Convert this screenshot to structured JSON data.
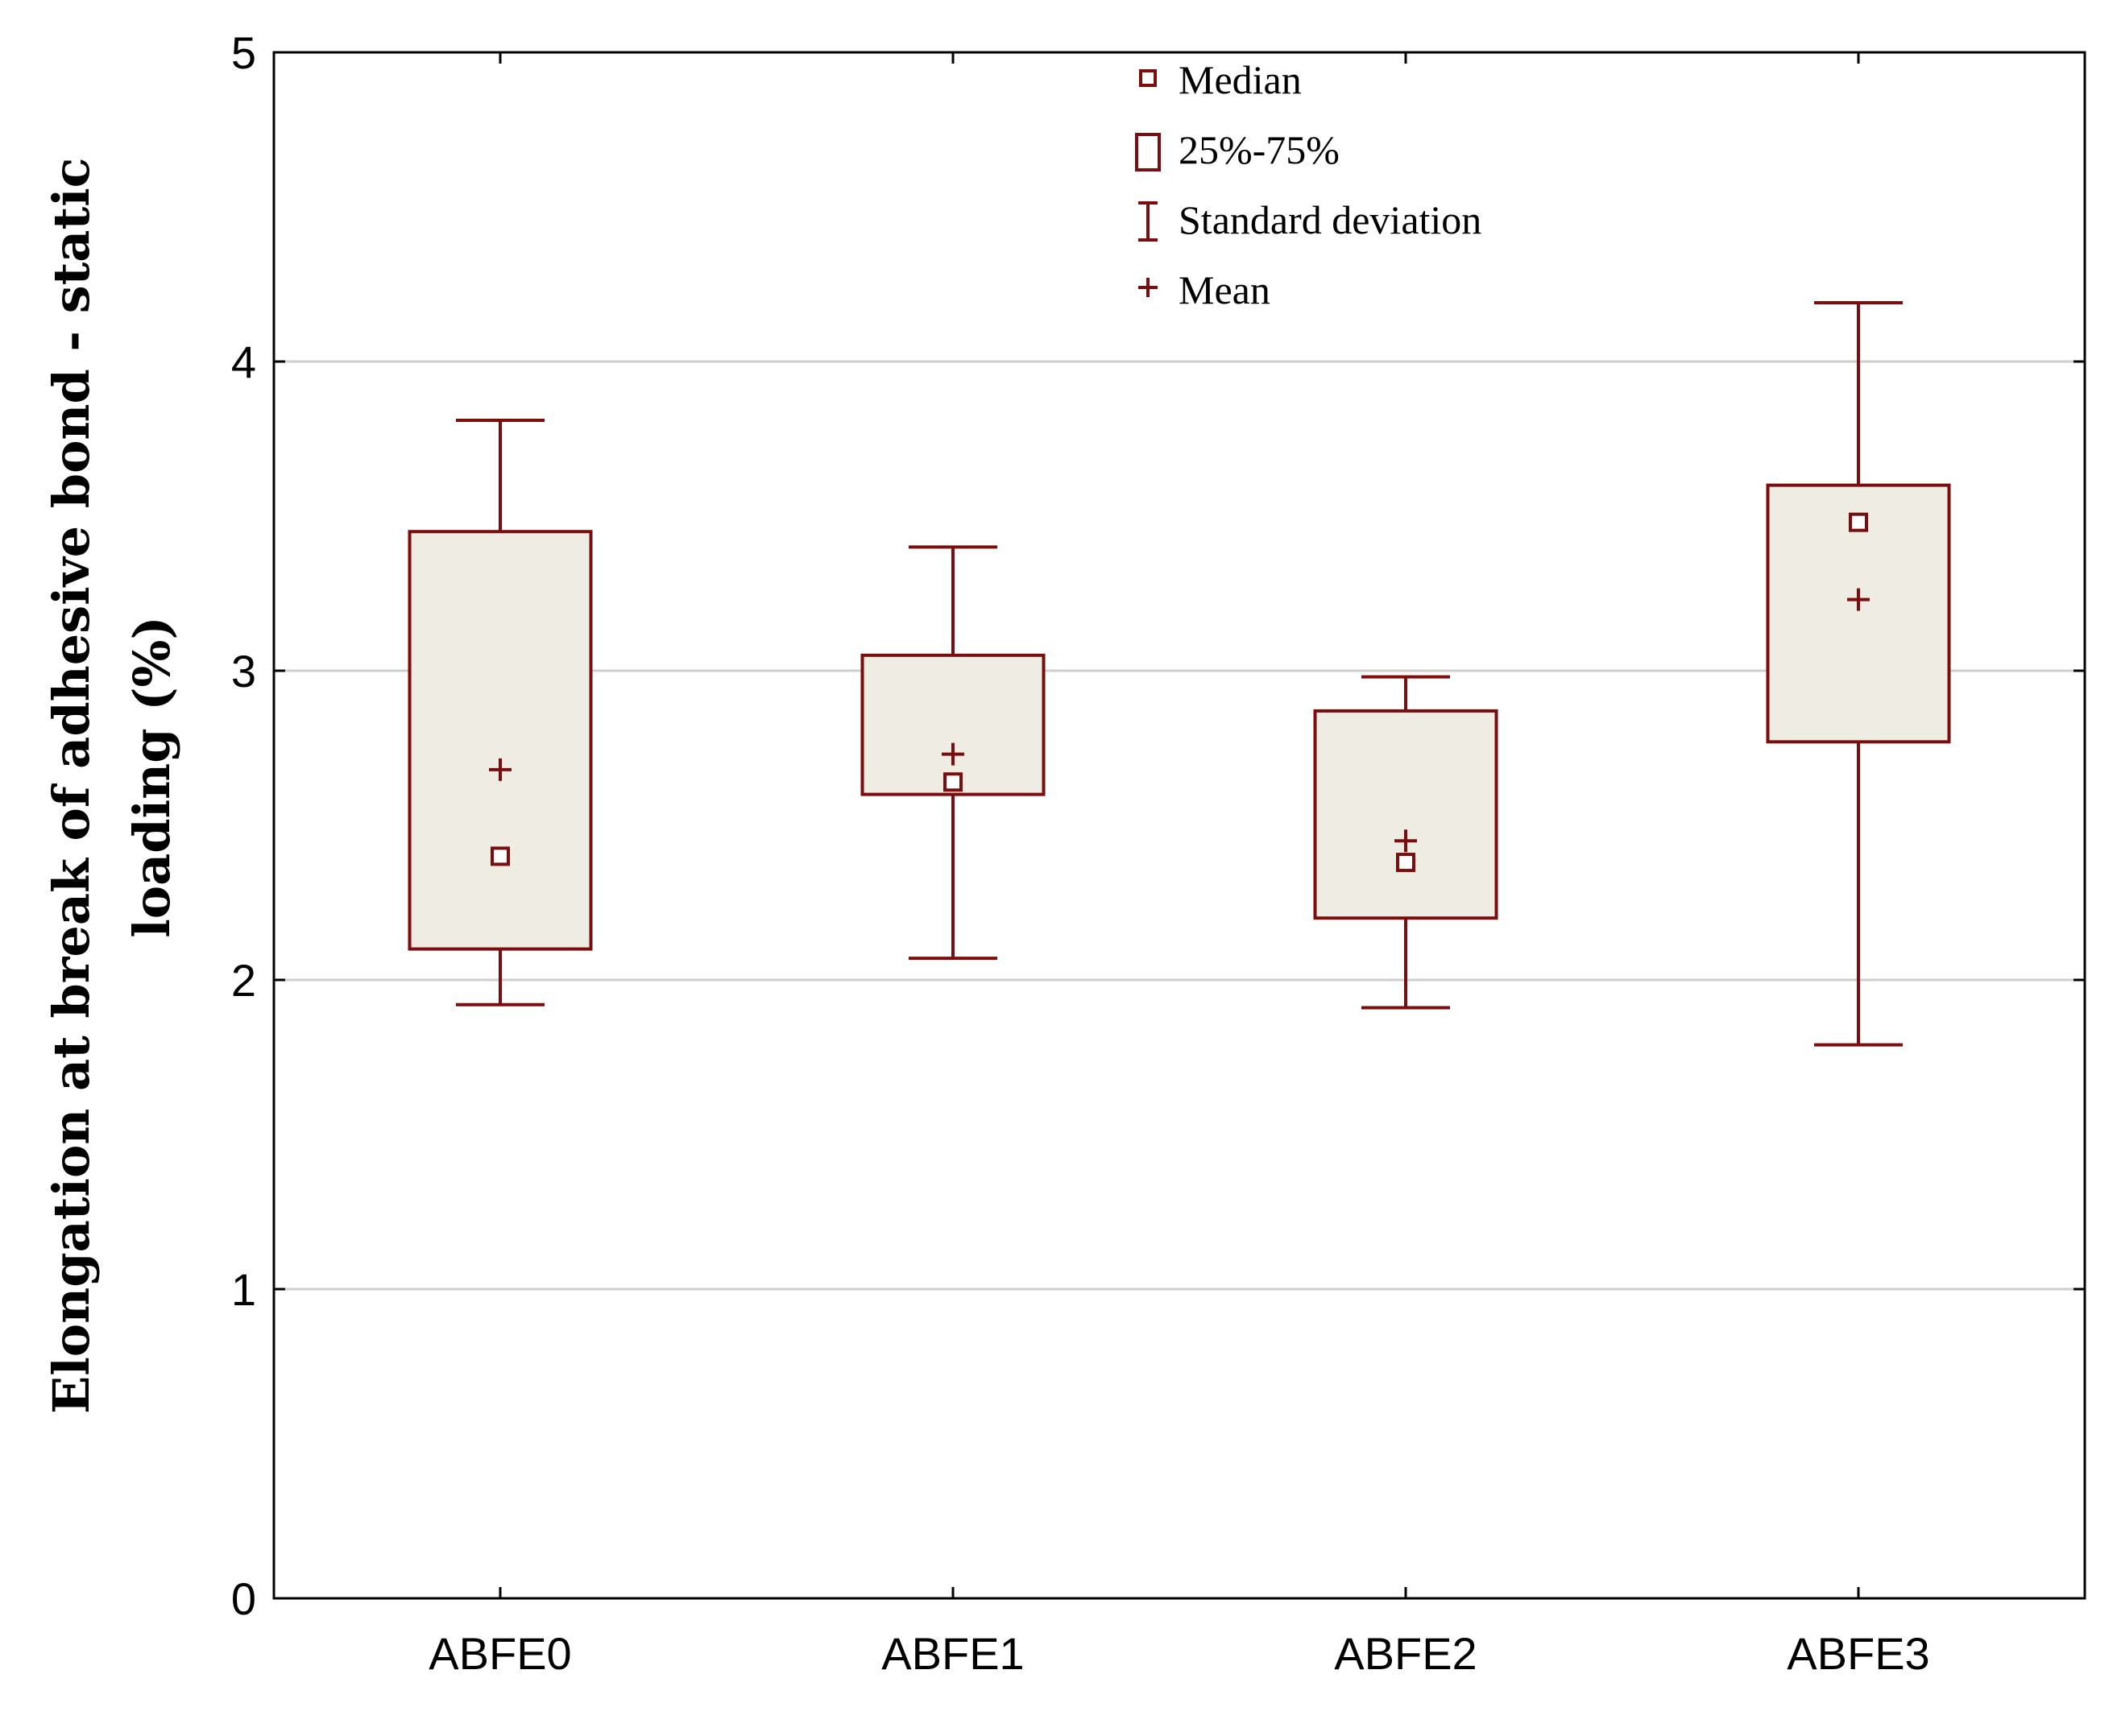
{
  "chart_data": {
    "type": "box",
    "ylabel_lines": [
      "Elongation at break of adhesive bond - static",
      "loading (%)"
    ],
    "xlabel": "",
    "ylim": [
      0,
      5
    ],
    "yticks": [
      0,
      1,
      2,
      3,
      4,
      5
    ],
    "categories": [
      "ABFE0",
      "ABFE1",
      "ABFE2",
      "ABFE3"
    ],
    "boxes": [
      {
        "label": "ABFE0",
        "median": 2.4,
        "q1": 2.1,
        "q3": 3.45,
        "mean": 2.68,
        "sd_low": 1.92,
        "sd_high": 3.81
      },
      {
        "label": "ABFE1",
        "median": 2.64,
        "q1": 2.6,
        "q3": 3.05,
        "mean": 2.73,
        "sd_low": 2.07,
        "sd_high": 3.4
      },
      {
        "label": "ABFE2",
        "median": 2.38,
        "q1": 2.2,
        "q3": 2.87,
        "mean": 2.45,
        "sd_low": 1.91,
        "sd_high": 2.98
      },
      {
        "label": "ABFE3",
        "median": 3.48,
        "q1": 2.77,
        "q3": 3.6,
        "mean": 3.23,
        "sd_low": 1.79,
        "sd_high": 4.19
      }
    ],
    "legend": {
      "position": "top-center",
      "items": [
        {
          "kind": "median",
          "label": "Median"
        },
        {
          "kind": "box",
          "label": "25%-75%"
        },
        {
          "kind": "whisker",
          "label": "Standard deviation"
        },
        {
          "kind": "mean",
          "label": "Mean"
        }
      ]
    },
    "grid": true,
    "colors": {
      "stroke": "#7a0e0e",
      "box_fill": "#efece3",
      "grid": "#cfcfcf",
      "axis": "#000000"
    }
  }
}
